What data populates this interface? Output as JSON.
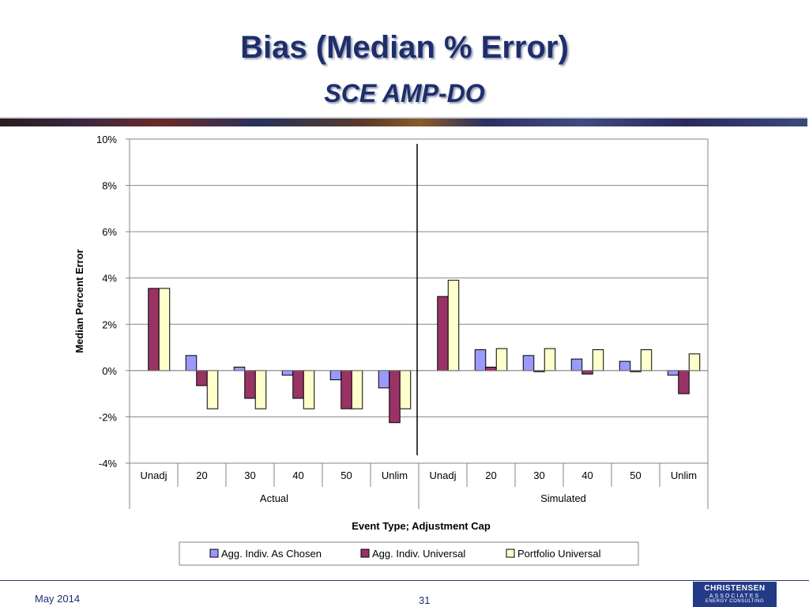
{
  "slide": {
    "title": "Bias (Median % Error)",
    "subtitle": "SCE AMP-DO",
    "footer_date": "May 2014",
    "page_number": "31",
    "logo": {
      "line1": "CHRISTENSEN",
      "line2": "ASSOCIATES",
      "line3": "ENERGY CONSULTING"
    }
  },
  "colors": {
    "title": "#1f2e6b",
    "series": [
      "#9999ff",
      "#993366",
      "#ffffcc"
    ]
  },
  "chart_data": {
    "type": "bar",
    "xlabel": "Event Type; Adjustment Cap",
    "ylabel": "Median Percent Error",
    "ylim": [
      -4,
      10
    ],
    "yticks": [
      -4,
      -2,
      0,
      2,
      4,
      6,
      8,
      10
    ],
    "ytick_labels": [
      "-4%",
      "-2%",
      "0%",
      "2%",
      "4%",
      "6%",
      "8%",
      "10%"
    ],
    "grid": true,
    "legend_position": "bottom",
    "groups": [
      {
        "label": "Actual",
        "categories": [
          "Unadj",
          "20",
          "30",
          "40",
          "50",
          "Unlim"
        ]
      },
      {
        "label": "Simulated",
        "categories": [
          "Unadj",
          "20",
          "30",
          "40",
          "50",
          "Unlim"
        ]
      }
    ],
    "categories": [
      "Unadj",
      "20",
      "30",
      "40",
      "50",
      "Unlim",
      "Unadj",
      "20",
      "30",
      "40",
      "50",
      "Unlim"
    ],
    "series": [
      {
        "name": "Agg. Indiv. As Chosen",
        "values": [
          null,
          0.65,
          0.15,
          -0.2,
          -0.4,
          -0.75,
          null,
          0.9,
          0.65,
          0.5,
          0.4,
          -0.2
        ]
      },
      {
        "name": "Agg. Indiv. Universal",
        "values": [
          3.55,
          -0.65,
          -1.2,
          -1.2,
          -1.65,
          -2.25,
          3.2,
          0.15,
          -0.05,
          -0.15,
          -0.05,
          -1.0
        ]
      },
      {
        "name": "Portfolio Universal",
        "values": [
          3.55,
          -1.65,
          -1.65,
          -1.65,
          -1.65,
          -1.65,
          3.9,
          0.95,
          0.95,
          0.9,
          0.9,
          0.72
        ]
      }
    ]
  }
}
